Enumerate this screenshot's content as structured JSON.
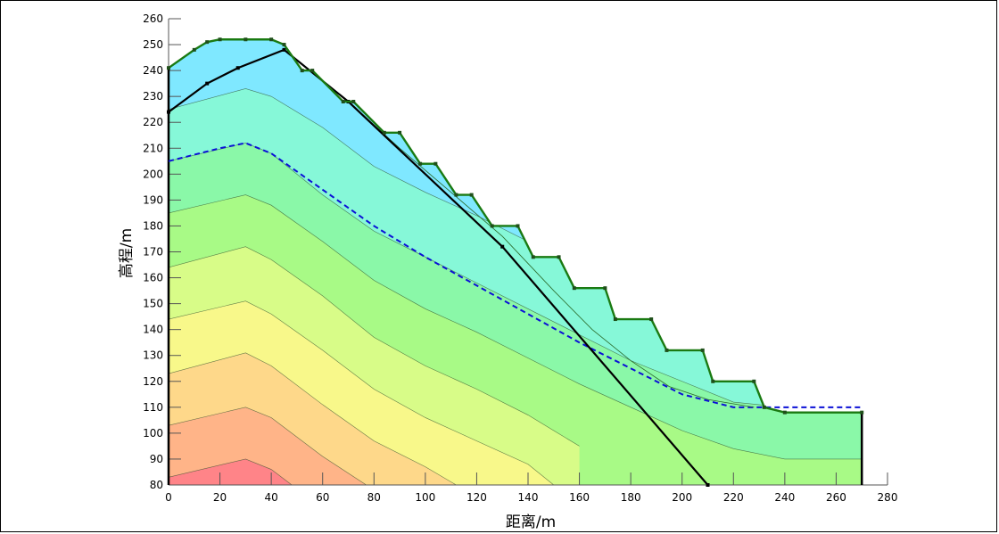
{
  "chart_data": {
    "type": "area",
    "title": "",
    "xlabel": "距离/m",
    "ylabel": "高程/m",
    "xlim": [
      0,
      280
    ],
    "ylim": [
      80,
      260
    ],
    "xticks": [
      0,
      20,
      40,
      60,
      80,
      100,
      120,
      140,
      160,
      180,
      200,
      220,
      240,
      260,
      280
    ],
    "yticks": [
      80,
      90,
      100,
      110,
      120,
      130,
      140,
      150,
      160,
      170,
      180,
      190,
      200,
      210,
      220,
      230,
      240,
      250,
      260
    ],
    "grid": false,
    "colors": {
      "band_top": "#7fe8ff",
      "band_mid": "#8aff7c",
      "band_low": "#ffd97a",
      "band_bottom": "#ff7a7a",
      "slope_outline": "#1a7a12",
      "slip_surface": "#000000",
      "water_table": "#0b10d6"
    },
    "ground_surface": {
      "x": [
        0,
        10,
        15,
        20,
        30,
        40,
        45,
        52,
        56,
        68,
        72,
        84,
        90,
        98,
        104,
        112,
        118,
        126,
        136,
        142,
        152,
        158,
        170,
        174,
        188,
        194,
        208,
        212,
        228,
        232,
        240,
        270
      ],
      "y": [
        241,
        248,
        251,
        252,
        252,
        252,
        250,
        240,
        240,
        228,
        228,
        216,
        216,
        204,
        204,
        192,
        192,
        180,
        180,
        168,
        168,
        156,
        156,
        144,
        144,
        132,
        132,
        120,
        120,
        110,
        108,
        108
      ]
    },
    "bottom_right_edge": {
      "x": 270,
      "y_top": 108,
      "y_bottom": 80
    },
    "contours": [
      {
        "level": 1,
        "x": [
          0,
          30,
          40,
          60,
          80,
          100,
          120,
          140,
          160,
          180,
          200,
          220,
          230,
          240,
          260,
          270
        ],
        "y": [
          225,
          233,
          230,
          218,
          203,
          193,
          184,
          174,
          163,
          152,
          138,
          125,
          118,
          112,
          110,
          110
        ]
      },
      {
        "level": 2,
        "x": [
          0,
          30,
          40,
          60,
          80,
          100,
          120,
          140,
          160,
          180,
          200,
          220,
          240,
          260,
          270
        ],
        "y": [
          205,
          212,
          208,
          192,
          178,
          168,
          158,
          148,
          138,
          128,
          120,
          112,
          110,
          110,
          110
        ]
      },
      {
        "level": 3,
        "x": [
          0,
          30,
          40,
          60,
          80,
          100,
          120,
          140,
          160,
          180,
          200,
          220,
          240,
          270
        ],
        "y": [
          185,
          192,
          188,
          174,
          159,
          148,
          139,
          129,
          119,
          110,
          101,
          94,
          90,
          90
        ]
      },
      {
        "level": 4,
        "x": [
          0,
          30,
          40,
          60,
          80,
          100,
          120,
          140,
          150,
          160
        ],
        "y": [
          164,
          172,
          167,
          153,
          137,
          126,
          117,
          107,
          101,
          95
        ]
      },
      {
        "level": 5,
        "x": [
          0,
          30,
          40,
          60,
          80,
          100,
          120,
          140,
          150
        ],
        "y": [
          144,
          151,
          146,
          132,
          117,
          106,
          97,
          88,
          80
        ]
      },
      {
        "level": 6,
        "x": [
          0,
          30,
          40,
          60,
          80,
          100,
          112
        ],
        "y": [
          123,
          131,
          126,
          111,
          97,
          87,
          80
        ]
      },
      {
        "level": 7,
        "x": [
          0,
          30,
          40,
          60,
          77
        ],
        "y": [
          103,
          110,
          106,
          91,
          80
        ]
      },
      {
        "level": 8,
        "x": [
          0,
          30,
          40,
          48
        ],
        "y": [
          83,
          90,
          86,
          80
        ]
      }
    ],
    "water_table": {
      "x": [
        0,
        20,
        30,
        40,
        60,
        80,
        100,
        120,
        140,
        160,
        180,
        200,
        220,
        240,
        270
      ],
      "y": [
        205,
        210,
        212,
        208,
        194,
        180,
        168,
        157,
        146,
        135,
        125,
        115,
        110,
        110,
        110
      ]
    },
    "slip_surface": {
      "x": [
        0,
        15,
        27,
        45,
        70,
        130,
        210
      ],
      "y": [
        224,
        235,
        241,
        248,
        228,
        172,
        80
      ]
    },
    "slip_toe_detail": {
      "x": [
        70,
        90,
        110,
        130,
        150,
        165,
        180,
        195,
        210,
        228
      ],
      "y": [
        228,
        210,
        193,
        176,
        155,
        140,
        128,
        118,
        113,
        110
      ]
    }
  }
}
